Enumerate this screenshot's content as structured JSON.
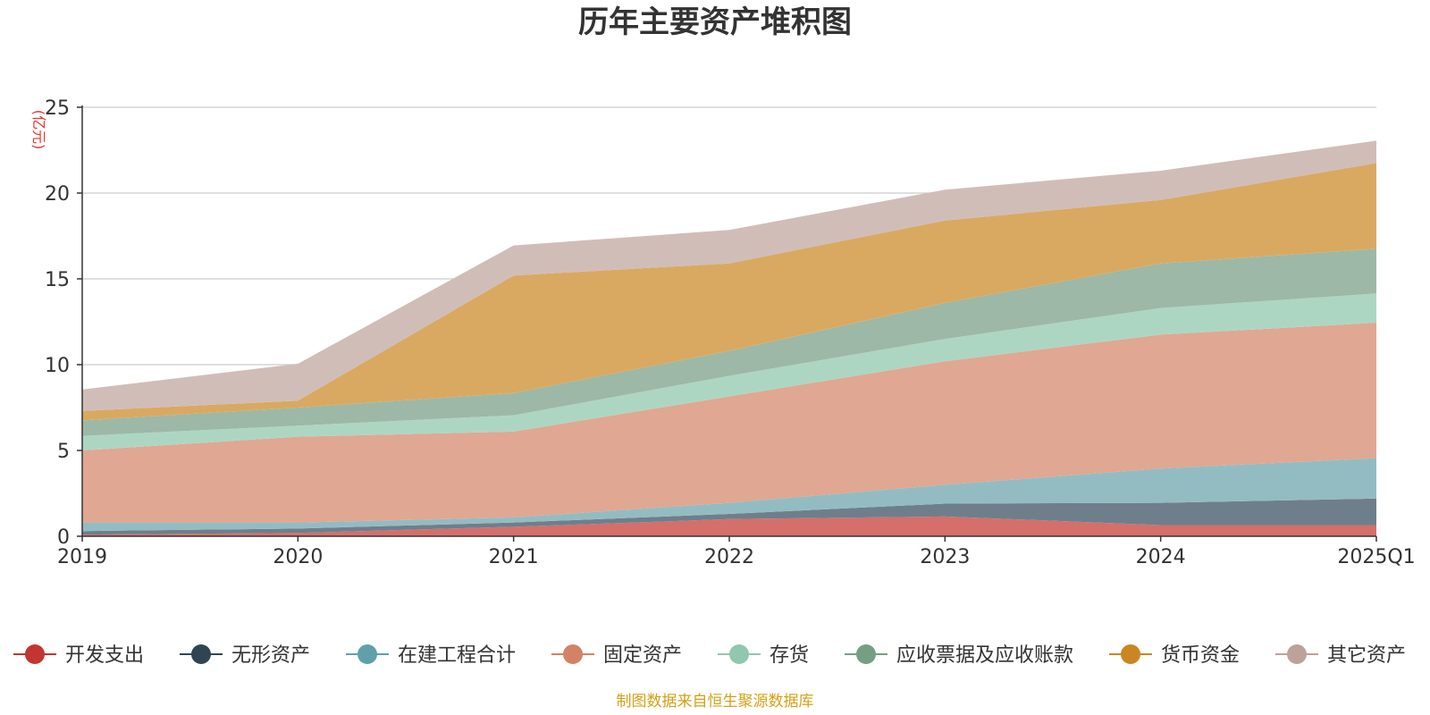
{
  "chart_data": {
    "type": "area",
    "stacked": true,
    "title": "历年主要资产堆积图",
    "unit": "(亿元)",
    "source": "制图数据来自恒生聚源数据库",
    "categories": [
      "2019",
      "2020",
      "2021",
      "2022",
      "2023",
      "2024",
      "2025Q1"
    ],
    "ylim": [
      0,
      25
    ],
    "yticks": [
      0,
      5,
      10,
      15,
      20,
      25
    ],
    "grid": true,
    "legend_position": "bottom",
    "series": [
      {
        "name": "开发支出",
        "color": "#c23531",
        "fill": "#d46f6c",
        "values": [
          0.1,
          0.2,
          0.55,
          1.0,
          1.15,
          0.65,
          0.65
        ]
      },
      {
        "name": "无形资产",
        "color": "#2f4554",
        "fill": "#6e7f8b",
        "values": [
          0.2,
          0.25,
          0.25,
          0.3,
          0.75,
          1.3,
          1.55
        ]
      },
      {
        "name": "在建工程合计",
        "color": "#61a0a8",
        "fill": "#93bcc2",
        "values": [
          0.5,
          0.35,
          0.3,
          0.65,
          1.1,
          2.0,
          2.35
        ]
      },
      {
        "name": "固定资产",
        "color": "#d48265",
        "fill": "#e0a793",
        "values": [
          4.2,
          5.0,
          5.0,
          6.2,
          7.2,
          7.8,
          7.9
        ]
      },
      {
        "name": "存货",
        "color": "#91c7ae",
        "fill": "#add6c2",
        "values": [
          0.85,
          0.65,
          0.95,
          1.2,
          1.3,
          1.55,
          1.7
        ]
      },
      {
        "name": "应收票据及应收账款",
        "color": "#749f83",
        "fill": "#9db8a6",
        "values": [
          0.9,
          1.05,
          1.3,
          1.45,
          2.1,
          2.6,
          2.6
        ]
      },
      {
        "name": "货币资金",
        "color": "#ca8622",
        "fill": "#d9a962",
        "values": [
          0.55,
          0.4,
          6.85,
          5.1,
          4.8,
          3.7,
          5.0
        ]
      },
      {
        "name": "其它资产",
        "color": "#bda29a",
        "fill": "#d1bdb8",
        "values": [
          1.25,
          2.15,
          1.75,
          1.95,
          1.8,
          1.7,
          1.3
        ]
      }
    ]
  }
}
